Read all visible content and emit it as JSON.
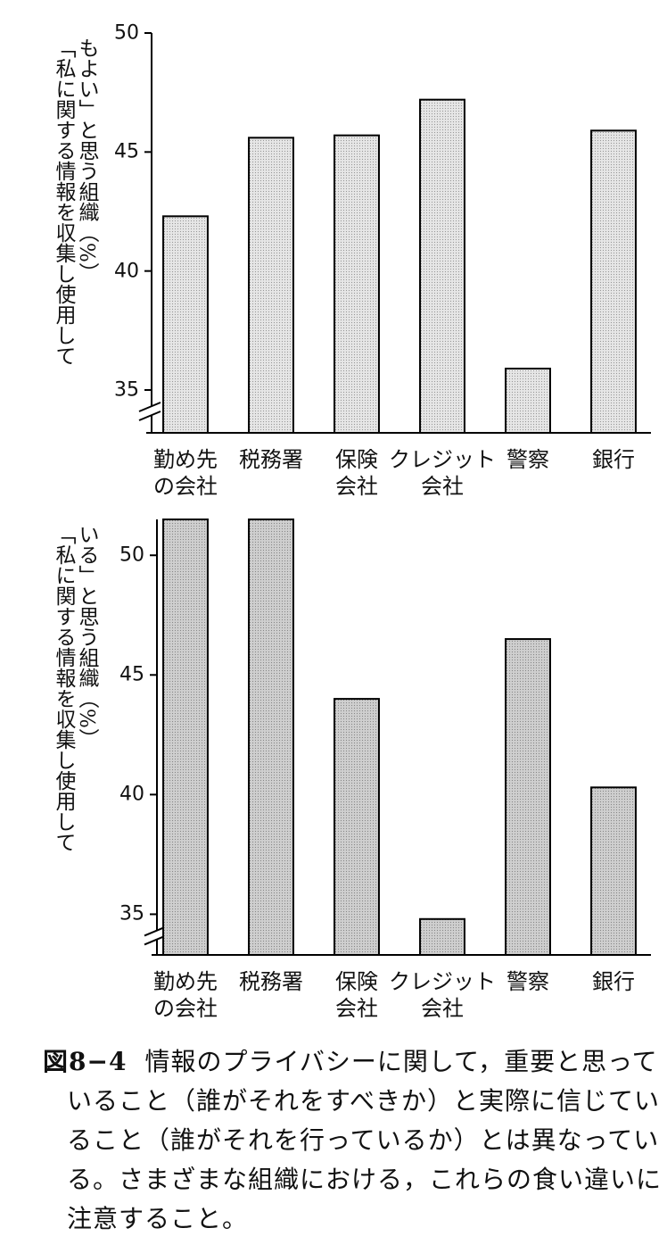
{
  "chart_data": [
    {
      "type": "bar",
      "y_label_lines": [
        "「私に関する情報を収集し使用して",
        "もよい」と思う組織（%）"
      ],
      "categories": [
        "勤め先\nの会社",
        "税務署",
        "保険\n会社",
        "クレジット\n会社",
        "警察",
        "銀行"
      ],
      "values": [
        42.3,
        45.6,
        45.7,
        47.2,
        35.9,
        45.9
      ],
      "color": "#e6e6e6",
      "ylim": [
        33.2,
        50
      ],
      "yticks": [
        35,
        40,
        45,
        50
      ],
      "axis_break": true
    },
    {
      "type": "bar",
      "y_label_lines": [
        "「私に関する情報を収集し使用して",
        "いる」と思う組織（%）"
      ],
      "categories": [
        "勤め先\nの会社",
        "税務署",
        "保険\n会社",
        "クレジット\n会社",
        "警察",
        "銀行"
      ],
      "values": [
        51.5,
        51.5,
        44.0,
        34.8,
        46.5,
        40.3
      ],
      "color": "#cfcfcf",
      "ylim": [
        33.3,
        51.5
      ],
      "yticks": [
        35,
        40,
        45,
        50
      ],
      "axis_break": true
    }
  ],
  "caption": {
    "label": "図8−4",
    "text": "情報のプライバシーに関して，重要と思っていること（誰がそれをすべきか）と実際に信じていること（誰がそれを行っているか）とは異なっている。さまざまな組織における，これらの食い違いに注意すること。"
  }
}
